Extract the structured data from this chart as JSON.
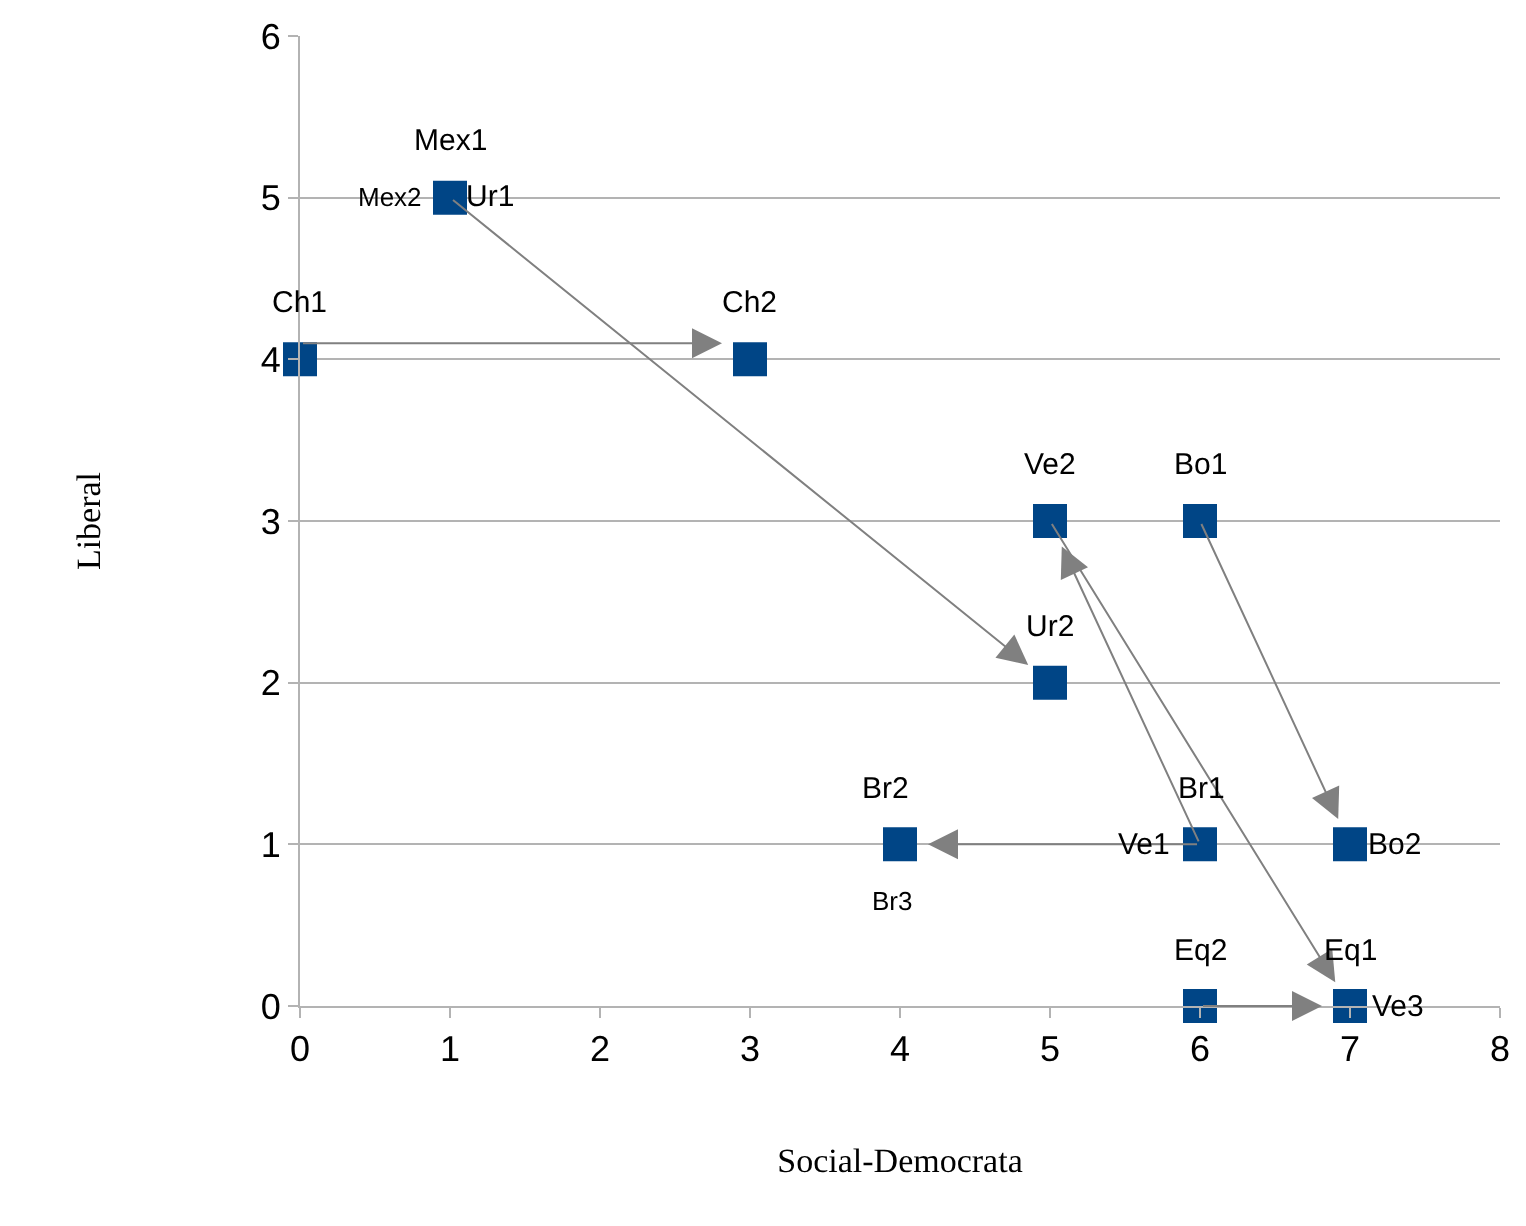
{
  "chart_data": {
    "type": "scatter",
    "xlabel": "Social-Democrata",
    "ylabel": "Liberal",
    "xlim": [
      0,
      8
    ],
    "xticks": [
      0,
      1,
      2,
      3,
      4,
      5,
      6,
      7,
      8
    ],
    "ylim": [
      0,
      6
    ],
    "yticks": [
      0,
      1,
      2,
      3,
      4,
      5,
      6
    ],
    "grid": "y",
    "marker": "square",
    "series": [
      {
        "color": "#004586",
        "x": [
          0,
          1,
          3,
          5,
          6,
          5,
          4,
          6,
          7,
          6,
          7
        ],
        "values": [
          4,
          5,
          4,
          3,
          3,
          2,
          1,
          1,
          1,
          0,
          0
        ]
      }
    ],
    "annotations": [
      {
        "text": "Ch1",
        "x": 0,
        "y": 4
      },
      {
        "text": "Mex1",
        "x": 1,
        "y": 5
      },
      {
        "text": "Mex2",
        "x": 1,
        "y": 5
      },
      {
        "text": "Ur1",
        "x": 1,
        "y": 5
      },
      {
        "text": "Ch2",
        "x": 3,
        "y": 4
      },
      {
        "text": "Ve2",
        "x": 5,
        "y": 3
      },
      {
        "text": "Bo1",
        "x": 6,
        "y": 3
      },
      {
        "text": "Ur2",
        "x": 5,
        "y": 2
      },
      {
        "text": "Br2",
        "x": 4,
        "y": 1
      },
      {
        "text": "Br3",
        "x": 4,
        "y": 1
      },
      {
        "text": "Br1",
        "x": 6,
        "y": 1
      },
      {
        "text": "Ve1",
        "x": 6,
        "y": 1
      },
      {
        "text": "Bo2",
        "x": 7,
        "y": 1
      },
      {
        "text": "Eq2",
        "x": 6,
        "y": 0
      },
      {
        "text": "Eq1",
        "x": 7,
        "y": 0
      },
      {
        "text": "Ve3",
        "x": 7,
        "y": 0
      }
    ]
  }
}
